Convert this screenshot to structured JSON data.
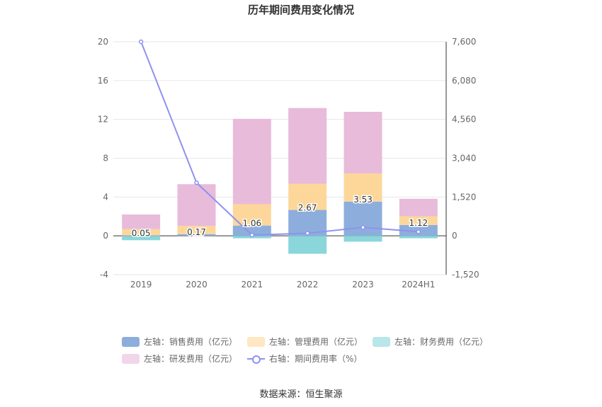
{
  "chart_data": {
    "type": "bar",
    "title": "历年期间费用变化情况",
    "categories": [
      "2019",
      "2020",
      "2021",
      "2022",
      "2023",
      "2024H1"
    ],
    "left_axis": {
      "ylim": [
        -4,
        20
      ],
      "ticks": [
        "-4",
        "0",
        "4",
        "8",
        "12",
        "16",
        "20"
      ]
    },
    "right_axis": {
      "ylim": [
        -1520,
        7600
      ],
      "ticks": [
        "-1,520",
        "0",
        "1,520",
        "3,040",
        "4,560",
        "6,080",
        "7,600"
      ]
    },
    "series": [
      {
        "name": "左轴：销售费用（亿元）",
        "type": "bar",
        "color": "#8DAEDC",
        "values": [
          0.05,
          0.17,
          1.06,
          2.67,
          3.53,
          1.12
        ]
      },
      {
        "name": "左轴：管理费用（亿元）",
        "type": "bar",
        "color": "#FDD79A",
        "values": [
          0.65,
          0.85,
          2.2,
          2.7,
          2.9,
          0.9
        ]
      },
      {
        "name": "左轴：财务费用（亿元）",
        "type": "bar",
        "color": "#8AD6DB",
        "values": [
          -0.45,
          0.0,
          -0.25,
          -1.85,
          -0.6,
          -0.25
        ]
      },
      {
        "name": "左轴：研发费用（亿元）",
        "type": "bar",
        "color": "#E8BBDA",
        "values": [
          1.5,
          4.3,
          8.8,
          7.8,
          6.35,
          1.8
        ]
      },
      {
        "name": "右轴：期间费用率（%）",
        "type": "line",
        "axis": "right",
        "color": "#8E92F0",
        "values": [
          7600,
          2080,
          30,
          100,
          330,
          160
        ]
      }
    ],
    "data_labels": [
      "0.05",
      "0.17",
      "1.06",
      "2.67",
      "3.53",
      "1.12"
    ],
    "legend_position": "bottom",
    "grid": true
  },
  "source_text": "数据来源：恒生聚源"
}
